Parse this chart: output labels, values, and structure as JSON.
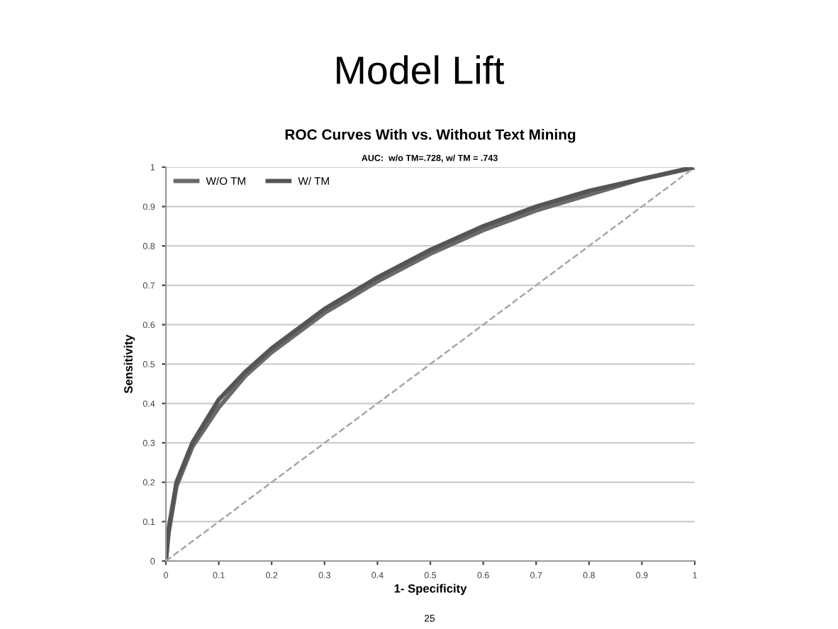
{
  "chart_data": {
    "type": "line",
    "title": "Model Lift",
    "subtitle": "ROC Curves With vs. Without Text Mining",
    "annotations": [
      "AUC:  w/o TM=.728, w/ TM = .743",
      "25"
    ],
    "xlabel": "1- Specificity",
    "ylabel": "Sensitivity",
    "series": [
      {
        "name": "W/O TM",
        "color": "#6a6a6a",
        "x": [
          0,
          0.005,
          0.02,
          0.05,
          0.1,
          0.15,
          0.2,
          0.3,
          0.4,
          0.5,
          0.6,
          0.7,
          0.8,
          0.9,
          1
        ],
        "values": [
          0,
          0.07,
          0.19,
          0.29,
          0.39,
          0.47,
          0.53,
          0.63,
          0.71,
          0.78,
          0.84,
          0.89,
          0.93,
          0.97,
          1
        ]
      },
      {
        "name": "W/ TM",
        "color": "#555555",
        "x": [
          0,
          0.005,
          0.02,
          0.05,
          0.1,
          0.15,
          0.2,
          0.3,
          0.4,
          0.5,
          0.6,
          0.7,
          0.8,
          0.9,
          1
        ],
        "values": [
          0,
          0.08,
          0.2,
          0.3,
          0.41,
          0.48,
          0.54,
          0.64,
          0.72,
          0.79,
          0.85,
          0.9,
          0.94,
          0.97,
          1
        ]
      },
      {
        "color": "#a6a6a6",
        "line_style": "dashed",
        "x": [
          0,
          1
        ],
        "values": [
          0,
          1
        ]
      }
    ],
    "xlim": [
      0,
      1
    ],
    "ylim": [
      0,
      1
    ],
    "xticks": [
      0,
      0.1,
      0.2,
      0.3,
      0.4,
      0.5,
      0.6,
      0.7,
      0.8,
      0.9,
      1
    ],
    "yticks": [
      0,
      0.1,
      0.2,
      0.3,
      0.4,
      0.5,
      0.6,
      0.7,
      0.8,
      0.9,
      1
    ],
    "grid": "y",
    "legend": "top left",
    "line_style": "solid"
  }
}
